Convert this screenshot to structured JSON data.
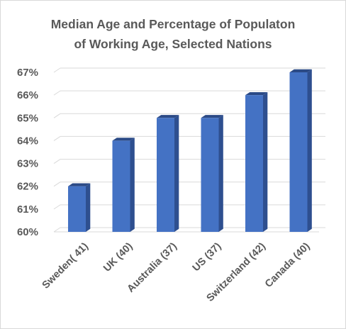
{
  "chart_data": {
    "type": "bar",
    "title": "Median Age and Percentage of Populaton of Working Age, Selected Nations",
    "title_lines": [
      "Median Age and Percentage of Populaton",
      "of Working Age, Selected Nations"
    ],
    "categories": [
      "Sweden( 41)",
      "UK (40)",
      "Australia (37)",
      "US (37)",
      "Switzerland (42)",
      "Canada (40)"
    ],
    "values": [
      62,
      64,
      65,
      65,
      66,
      67
    ],
    "y_ticks": [
      "60%",
      "61%",
      "62%",
      "63%",
      "64%",
      "65%",
      "66%",
      "67%"
    ],
    "ylim": [
      60,
      67
    ],
    "xlabel": "",
    "ylabel": "",
    "grid": true,
    "legend": "none",
    "colors": {
      "bar_front": "#4472c4",
      "bar_side": "#2e4f8f",
      "bar_top": "#2b4a86",
      "grid": "#d9d9d9",
      "text": "#595959"
    }
  }
}
